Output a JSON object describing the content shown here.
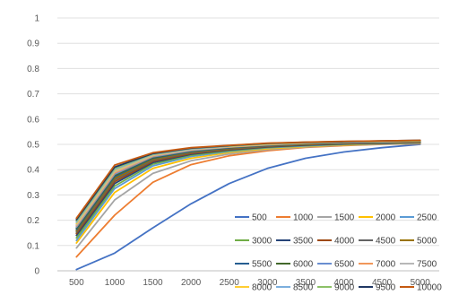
{
  "chart_data": {
    "type": "line",
    "title": "",
    "xlabel": "",
    "ylabel": "",
    "x": [
      500,
      1000,
      1500,
      2000,
      2500,
      3000,
      3500,
      4000,
      4500,
      5000
    ],
    "x_tick_labels": [
      "500",
      "1000",
      "1500",
      "2000",
      "2500",
      "3000",
      "3500",
      "4000",
      "4500",
      "5000"
    ],
    "ylim": [
      0,
      1
    ],
    "y_tick_labels": [
      "0",
      "0.1",
      "0.2",
      "0.3",
      "0.4",
      "0.5",
      "0.6",
      "0.7",
      "0.8",
      "0.9",
      "1"
    ],
    "grid": "horizontal",
    "legend_position": "inside-bottom-right",
    "series": [
      {
        "name": "500",
        "color": "#4472C4",
        "values": [
          0.005,
          0.07,
          0.17,
          0.265,
          0.345,
          0.405,
          0.445,
          0.47,
          0.487,
          0.5
        ]
      },
      {
        "name": "1000",
        "color": "#ED7D31",
        "values": [
          0.055,
          0.22,
          0.35,
          0.42,
          0.455,
          0.475,
          0.488,
          0.495,
          0.5,
          0.503
        ]
      },
      {
        "name": "1500",
        "color": "#A5A5A5",
        "values": [
          0.09,
          0.28,
          0.385,
          0.435,
          0.462,
          0.479,
          0.49,
          0.497,
          0.501,
          0.504
        ]
      },
      {
        "name": "2000",
        "color": "#FFC000",
        "values": [
          0.11,
          0.31,
          0.405,
          0.445,
          0.468,
          0.483,
          0.492,
          0.498,
          0.502,
          0.505
        ]
      },
      {
        "name": "2500",
        "color": "#5B9BD5",
        "values": [
          0.12,
          0.325,
          0.415,
          0.452,
          0.472,
          0.486,
          0.494,
          0.5,
          0.503,
          0.506
        ]
      },
      {
        "name": "3000",
        "color": "#70AD47",
        "values": [
          0.13,
          0.335,
          0.422,
          0.457,
          0.475,
          0.488,
          0.496,
          0.501,
          0.504,
          0.507
        ]
      },
      {
        "name": "3500",
        "color": "#264478",
        "values": [
          0.14,
          0.345,
          0.428,
          0.461,
          0.478,
          0.49,
          0.497,
          0.502,
          0.505,
          0.508
        ]
      },
      {
        "name": "4000",
        "color": "#9E480E",
        "values": [
          0.147,
          0.353,
          0.433,
          0.464,
          0.48,
          0.492,
          0.499,
          0.503,
          0.506,
          0.509
        ]
      },
      {
        "name": "4500",
        "color": "#636363",
        "values": [
          0.153,
          0.36,
          0.437,
          0.467,
          0.482,
          0.493,
          0.5,
          0.504,
          0.507,
          0.51
        ]
      },
      {
        "name": "5000",
        "color": "#997300",
        "values": [
          0.158,
          0.366,
          0.441,
          0.47,
          0.484,
          0.495,
          0.501,
          0.505,
          0.508,
          0.511
        ]
      },
      {
        "name": "5500",
        "color": "#255E91",
        "values": [
          0.163,
          0.372,
          0.445,
          0.472,
          0.486,
          0.496,
          0.502,
          0.506,
          0.509,
          0.512
        ]
      },
      {
        "name": "6000",
        "color": "#43682B",
        "values": [
          0.168,
          0.377,
          0.448,
          0.474,
          0.488,
          0.497,
          0.503,
          0.507,
          0.51,
          0.512
        ]
      },
      {
        "name": "6500",
        "color": "#698ED0",
        "values": [
          0.173,
          0.382,
          0.451,
          0.476,
          0.489,
          0.498,
          0.504,
          0.508,
          0.51,
          0.513
        ]
      },
      {
        "name": "7000",
        "color": "#F1975A",
        "values": [
          0.178,
          0.387,
          0.454,
          0.478,
          0.49,
          0.499,
          0.505,
          0.509,
          0.511,
          0.513
        ]
      },
      {
        "name": "7500",
        "color": "#B7B7B7",
        "values": [
          0.182,
          0.392,
          0.456,
          0.479,
          0.491,
          0.5,
          0.506,
          0.509,
          0.512,
          0.514
        ]
      },
      {
        "name": "8000",
        "color": "#FFCD33",
        "values": [
          0.187,
          0.396,
          0.458,
          0.481,
          0.492,
          0.501,
          0.506,
          0.51,
          0.512,
          0.514
        ]
      },
      {
        "name": "8500",
        "color": "#7CAFDD",
        "values": [
          0.192,
          0.4,
          0.46,
          0.482,
          0.493,
          0.502,
          0.507,
          0.51,
          0.513,
          0.515
        ]
      },
      {
        "name": "9000",
        "color": "#8CC168",
        "values": [
          0.197,
          0.405,
          0.462,
          0.484,
          0.494,
          0.503,
          0.508,
          0.511,
          0.513,
          0.515
        ]
      },
      {
        "name": "9500",
        "color": "#203864",
        "values": [
          0.202,
          0.41,
          0.464,
          0.485,
          0.495,
          0.504,
          0.508,
          0.511,
          0.514,
          0.516
        ]
      },
      {
        "name": "10000",
        "color": "#C55A11",
        "values": [
          0.208,
          0.418,
          0.467,
          0.487,
          0.496,
          0.505,
          0.509,
          0.512,
          0.514,
          0.516
        ]
      }
    ]
  }
}
